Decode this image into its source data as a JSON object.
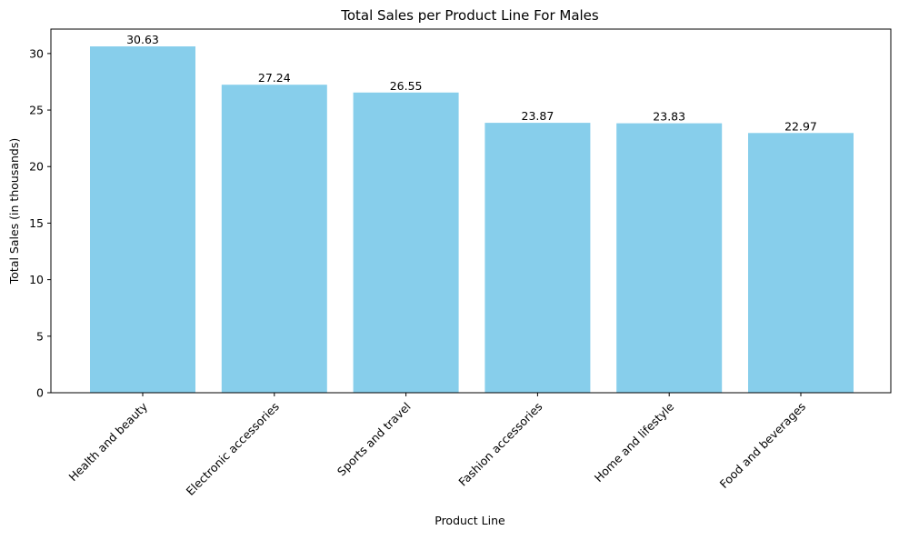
{
  "chart_data": {
    "type": "bar",
    "title": "Total Sales per Product Line For Males",
    "xlabel": "Product Line",
    "ylabel": "Total Sales (in thousands)",
    "categories": [
      "Health and beauty",
      "Electronic accessories",
      "Sports and travel",
      "Fashion accessories",
      "Home and lifestyle",
      "Food and beverages"
    ],
    "values": [
      30.63,
      27.24,
      26.55,
      23.87,
      23.83,
      22.97
    ],
    "data_labels": [
      "30.63",
      "27.24",
      "26.55",
      "23.87",
      "23.83",
      "22.97"
    ],
    "ylim": [
      0,
      32.16
    ],
    "yticks": [
      0,
      5,
      10,
      15,
      20,
      25,
      30
    ],
    "ytick_labels": [
      "0",
      "5",
      "10",
      "15",
      "20",
      "25",
      "30"
    ],
    "bar_color": "#87ceeb",
    "grid": false,
    "legend": "none"
  }
}
